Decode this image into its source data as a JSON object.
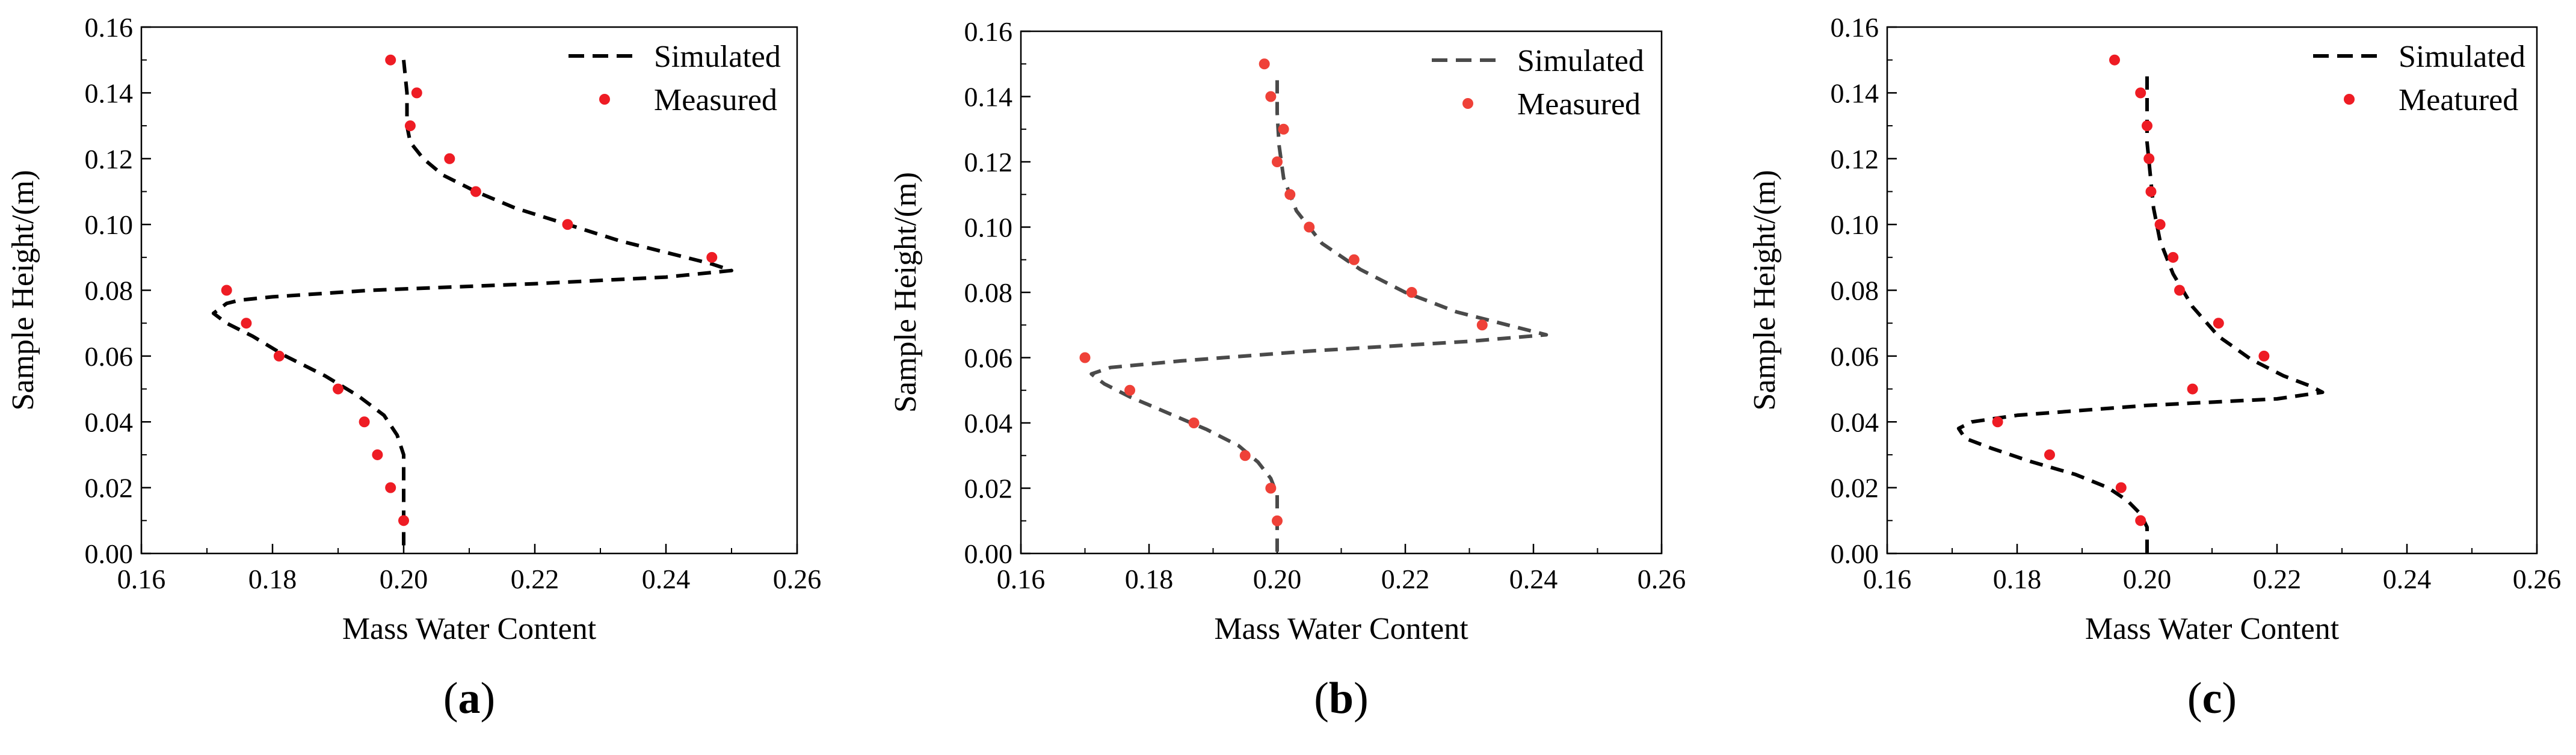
{
  "figure": {
    "panels": [
      "a",
      "b",
      "c"
    ]
  },
  "chart_data": [
    {
      "type": "scatter",
      "panel_label": "a",
      "title": "",
      "xlabel": "Mass Water Content",
      "ylabel": "Sample Height/(m)",
      "xlim": [
        0.16,
        0.26
      ],
      "ylim": [
        0.0,
        0.16
      ],
      "x_ticks": [
        "0.16",
        "0.18",
        "0.20",
        "0.22",
        "0.24",
        "0.26"
      ],
      "y_ticks": [
        "0.00",
        "0.02",
        "0.04",
        "0.06",
        "0.08",
        "0.10",
        "0.12",
        "0.14",
        "0.16"
      ],
      "grid": false,
      "legend_position": "top-right",
      "series": [
        {
          "name": "Simulated",
          "kind": "dashed-line",
          "color": "#000000",
          "points": [
            [
              0.2,
              0.15
            ],
            [
              0.2005,
              0.14
            ],
            [
              0.2005,
              0.13
            ],
            [
              0.201,
              0.125
            ],
            [
              0.203,
              0.12
            ],
            [
              0.206,
              0.115
            ],
            [
              0.211,
              0.11
            ],
            [
              0.217,
              0.105
            ],
            [
              0.225,
              0.1
            ],
            [
              0.233,
              0.095
            ],
            [
              0.241,
              0.091
            ],
            [
              0.247,
              0.088
            ],
            [
              0.25,
              0.086
            ],
            [
              0.24,
              0.084
            ],
            [
              0.22,
              0.082
            ],
            [
              0.195,
              0.08
            ],
            [
              0.18,
              0.078
            ],
            [
              0.175,
              0.077
            ],
            [
              0.173,
              0.076
            ],
            [
              0.171,
              0.073
            ],
            [
              0.173,
              0.07
            ],
            [
              0.177,
              0.066
            ],
            [
              0.182,
              0.06
            ],
            [
              0.188,
              0.054
            ],
            [
              0.193,
              0.048
            ],
            [
              0.197,
              0.042
            ],
            [
              0.199,
              0.036
            ],
            [
              0.2,
              0.03
            ],
            [
              0.2,
              0.02
            ],
            [
              0.2,
              0.0
            ]
          ]
        },
        {
          "name": "Measured",
          "kind": "markers",
          "color": "#ee1c24",
          "points": [
            [
              0.198,
              0.15
            ],
            [
              0.202,
              0.14
            ],
            [
              0.201,
              0.13
            ],
            [
              0.207,
              0.12
            ],
            [
              0.211,
              0.11
            ],
            [
              0.225,
              0.1
            ],
            [
              0.247,
              0.09
            ],
            [
              0.173,
              0.08
            ],
            [
              0.176,
              0.07
            ],
            [
              0.181,
              0.06
            ],
            [
              0.19,
              0.05
            ],
            [
              0.194,
              0.04
            ],
            [
              0.196,
              0.03
            ],
            [
              0.198,
              0.02
            ],
            [
              0.2,
              0.01
            ]
          ]
        }
      ]
    },
    {
      "type": "scatter",
      "panel_label": "b",
      "title": "",
      "xlabel": "Mass Water Content",
      "ylabel": "Sample Height/(m)",
      "xlim": [
        0.16,
        0.26
      ],
      "ylim": [
        0.0,
        0.16
      ],
      "x_ticks": [
        "0.16",
        "0.18",
        "0.20",
        "0.22",
        "0.24",
        "0.26"
      ],
      "y_ticks": [
        "0.00",
        "0.02",
        "0.04",
        "0.06",
        "0.08",
        "0.10",
        "0.12",
        "0.14",
        "0.16"
      ],
      "grid": false,
      "legend_position": "top-right",
      "series": [
        {
          "name": "Simulated",
          "kind": "dashed-line",
          "color": "#4a4a4a",
          "points": [
            [
              0.2,
              0.145
            ],
            [
              0.2,
              0.135
            ],
            [
              0.2003,
              0.125
            ],
            [
              0.201,
              0.115
            ],
            [
              0.203,
              0.105
            ],
            [
              0.207,
              0.095
            ],
            [
              0.213,
              0.087
            ],
            [
              0.22,
              0.08
            ],
            [
              0.228,
              0.074
            ],
            [
              0.236,
              0.07
            ],
            [
              0.242,
              0.067
            ],
            [
              0.23,
              0.065
            ],
            [
              0.205,
              0.062
            ],
            [
              0.185,
              0.059
            ],
            [
              0.174,
              0.057
            ],
            [
              0.171,
              0.055
            ],
            [
              0.173,
              0.052
            ],
            [
              0.177,
              0.048
            ],
            [
              0.183,
              0.043
            ],
            [
              0.189,
              0.038
            ],
            [
              0.194,
              0.033
            ],
            [
              0.197,
              0.028
            ],
            [
              0.199,
              0.023
            ],
            [
              0.2,
              0.018
            ],
            [
              0.2,
              0.01
            ],
            [
              0.2,
              0.0
            ]
          ]
        },
        {
          "name": "Measured",
          "kind": "markers",
          "color": "#ef4138",
          "points": [
            [
              0.198,
              0.15
            ],
            [
              0.199,
              0.14
            ],
            [
              0.201,
              0.13
            ],
            [
              0.2,
              0.12
            ],
            [
              0.202,
              0.11
            ],
            [
              0.205,
              0.1
            ],
            [
              0.212,
              0.09
            ],
            [
              0.221,
              0.08
            ],
            [
              0.232,
              0.07
            ],
            [
              0.17,
              0.06
            ],
            [
              0.177,
              0.05
            ],
            [
              0.187,
              0.04
            ],
            [
              0.195,
              0.03
            ],
            [
              0.199,
              0.02
            ],
            [
              0.2,
              0.01
            ]
          ]
        }
      ]
    },
    {
      "type": "scatter",
      "panel_label": "c",
      "title": "",
      "xlabel": "Mass Water Content",
      "ylabel": "Sample Height/(m)",
      "xlim": [
        0.16,
        0.26
      ],
      "ylim": [
        0.0,
        0.16
      ],
      "x_ticks": [
        "0.16",
        "0.18",
        "0.20",
        "0.22",
        "0.24",
        "0.26"
      ],
      "y_ticks": [
        "0.00",
        "0.02",
        "0.04",
        "0.06",
        "0.08",
        "0.10",
        "0.12",
        "0.14",
        "0.16"
      ],
      "grid": false,
      "legend_position": "top-right",
      "series": [
        {
          "name": "Simulated",
          "kind": "dashed-line",
          "color": "#000000",
          "points": [
            [
              0.2,
              0.145
            ],
            [
              0.2,
              0.135
            ],
            [
              0.2,
              0.125
            ],
            [
              0.2005,
              0.115
            ],
            [
              0.201,
              0.105
            ],
            [
              0.202,
              0.095
            ],
            [
              0.204,
              0.085
            ],
            [
              0.207,
              0.075
            ],
            [
              0.211,
              0.066
            ],
            [
              0.216,
              0.059
            ],
            [
              0.221,
              0.054
            ],
            [
              0.225,
              0.051
            ],
            [
              0.227,
              0.049
            ],
            [
              0.22,
              0.047
            ],
            [
              0.2,
              0.045
            ],
            [
              0.18,
              0.042
            ],
            [
              0.173,
              0.04
            ],
            [
              0.171,
              0.038
            ],
            [
              0.172,
              0.035
            ],
            [
              0.176,
              0.032
            ],
            [
              0.182,
              0.028
            ],
            [
              0.189,
              0.024
            ],
            [
              0.194,
              0.02
            ],
            [
              0.197,
              0.016
            ],
            [
              0.199,
              0.012
            ],
            [
              0.2,
              0.008
            ],
            [
              0.2,
              0.0
            ]
          ]
        },
        {
          "name": "Meatured",
          "kind": "markers",
          "color": "#ee1c24",
          "points": [
            [
              0.195,
              0.15
            ],
            [
              0.199,
              0.14
            ],
            [
              0.2,
              0.13
            ],
            [
              0.2003,
              0.12
            ],
            [
              0.2006,
              0.11
            ],
            [
              0.202,
              0.1
            ],
            [
              0.204,
              0.09
            ],
            [
              0.205,
              0.08
            ],
            [
              0.211,
              0.07
            ],
            [
              0.218,
              0.06
            ],
            [
              0.207,
              0.05
            ],
            [
              0.177,
              0.04
            ],
            [
              0.185,
              0.03
            ],
            [
              0.196,
              0.02
            ],
            [
              0.199,
              0.01
            ]
          ]
        }
      ]
    }
  ]
}
